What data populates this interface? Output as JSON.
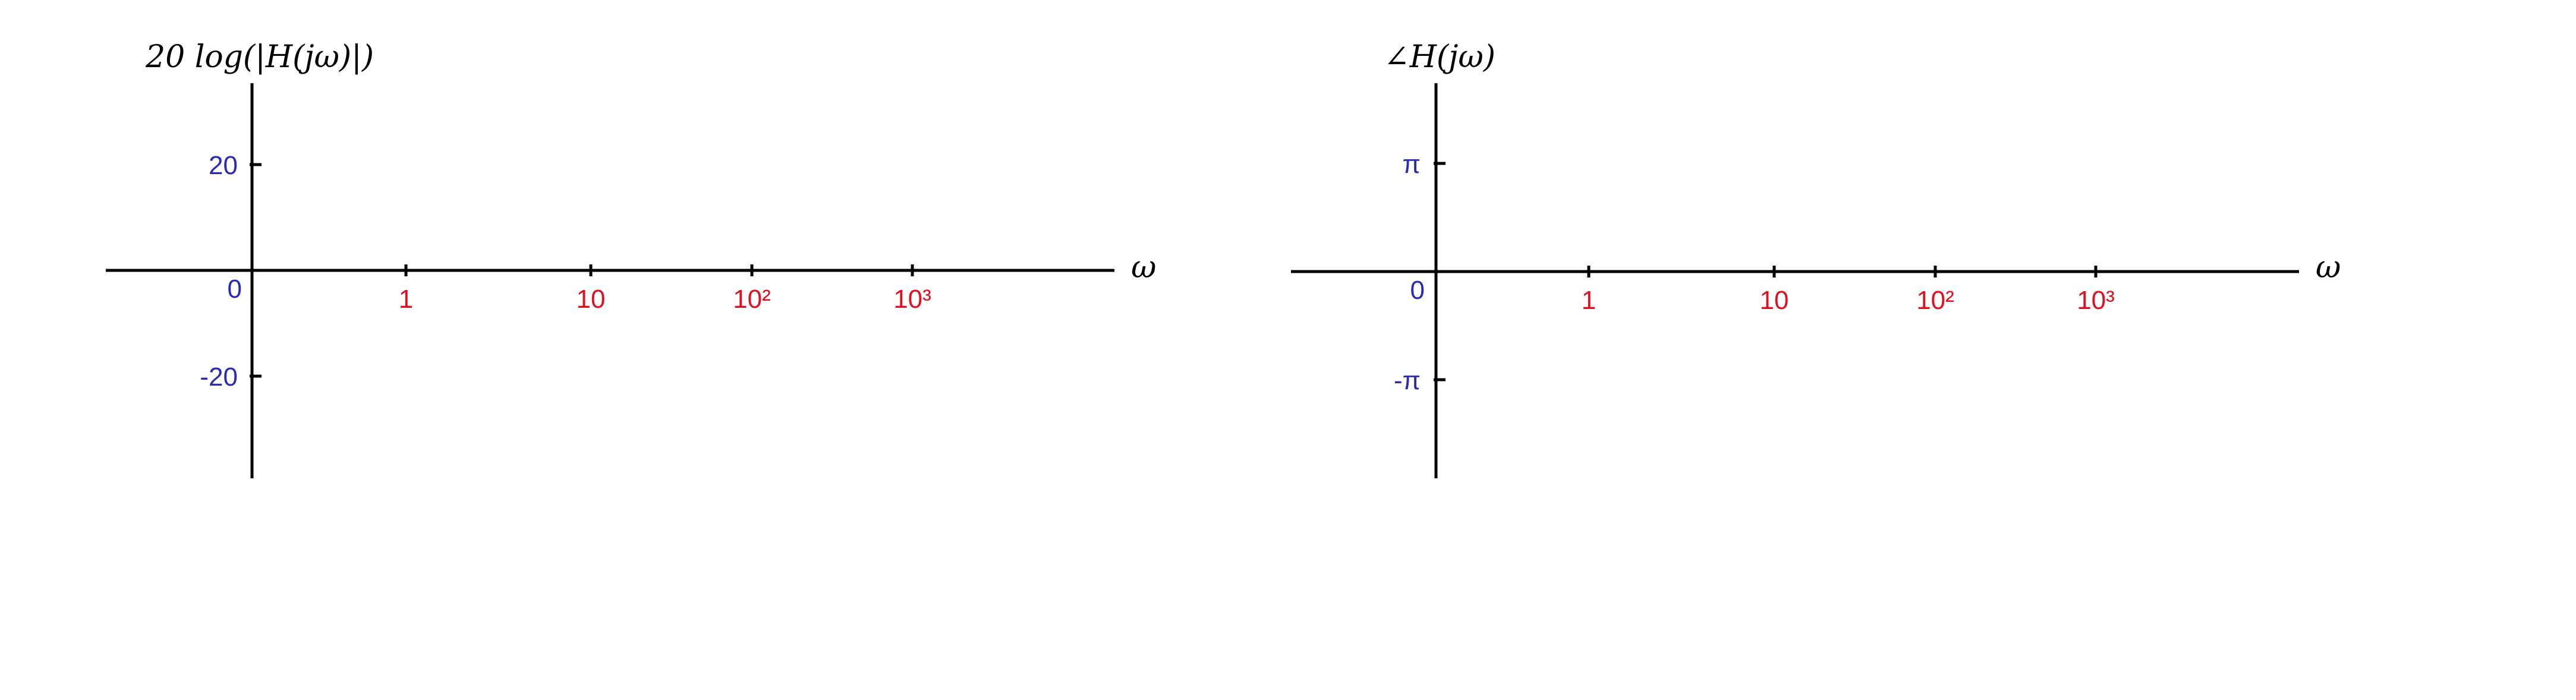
{
  "chart_data": [
    {
      "type": "line",
      "title": "",
      "ylabel": "20 log(|H(jω)|)",
      "xlabel": "ω",
      "x_scale": "log",
      "x_ticks": [
        {
          "label": "1",
          "value": 1
        },
        {
          "label": "10",
          "value": 10
        },
        {
          "label": "10²",
          "value": 100
        },
        {
          "label": "10³",
          "value": 1000
        }
      ],
      "y_ticks": [
        {
          "label": "20",
          "value": 20
        },
        {
          "label": "0",
          "value": 0
        },
        {
          "label": "-20",
          "value": -20
        }
      ],
      "series": [],
      "x_tick_color": "#e0101e",
      "y_tick_color": "#2a2ab8",
      "grid": false
    },
    {
      "type": "line",
      "title": "",
      "ylabel": "∠H(jω)",
      "xlabel": "ω",
      "x_scale": "log",
      "x_ticks": [
        {
          "label": "1",
          "value": 1
        },
        {
          "label": "10",
          "value": 10
        },
        {
          "label": "10²",
          "value": 100
        },
        {
          "label": "10³",
          "value": 1000
        }
      ],
      "y_ticks": [
        {
          "label": "π",
          "value": 3.14159
        },
        {
          "label": "0",
          "value": 0
        },
        {
          "label": "-π",
          "value": -3.14159
        }
      ],
      "series": [],
      "x_tick_color": "#e0101e",
      "y_tick_color": "#2a2ab8",
      "grid": false
    }
  ]
}
